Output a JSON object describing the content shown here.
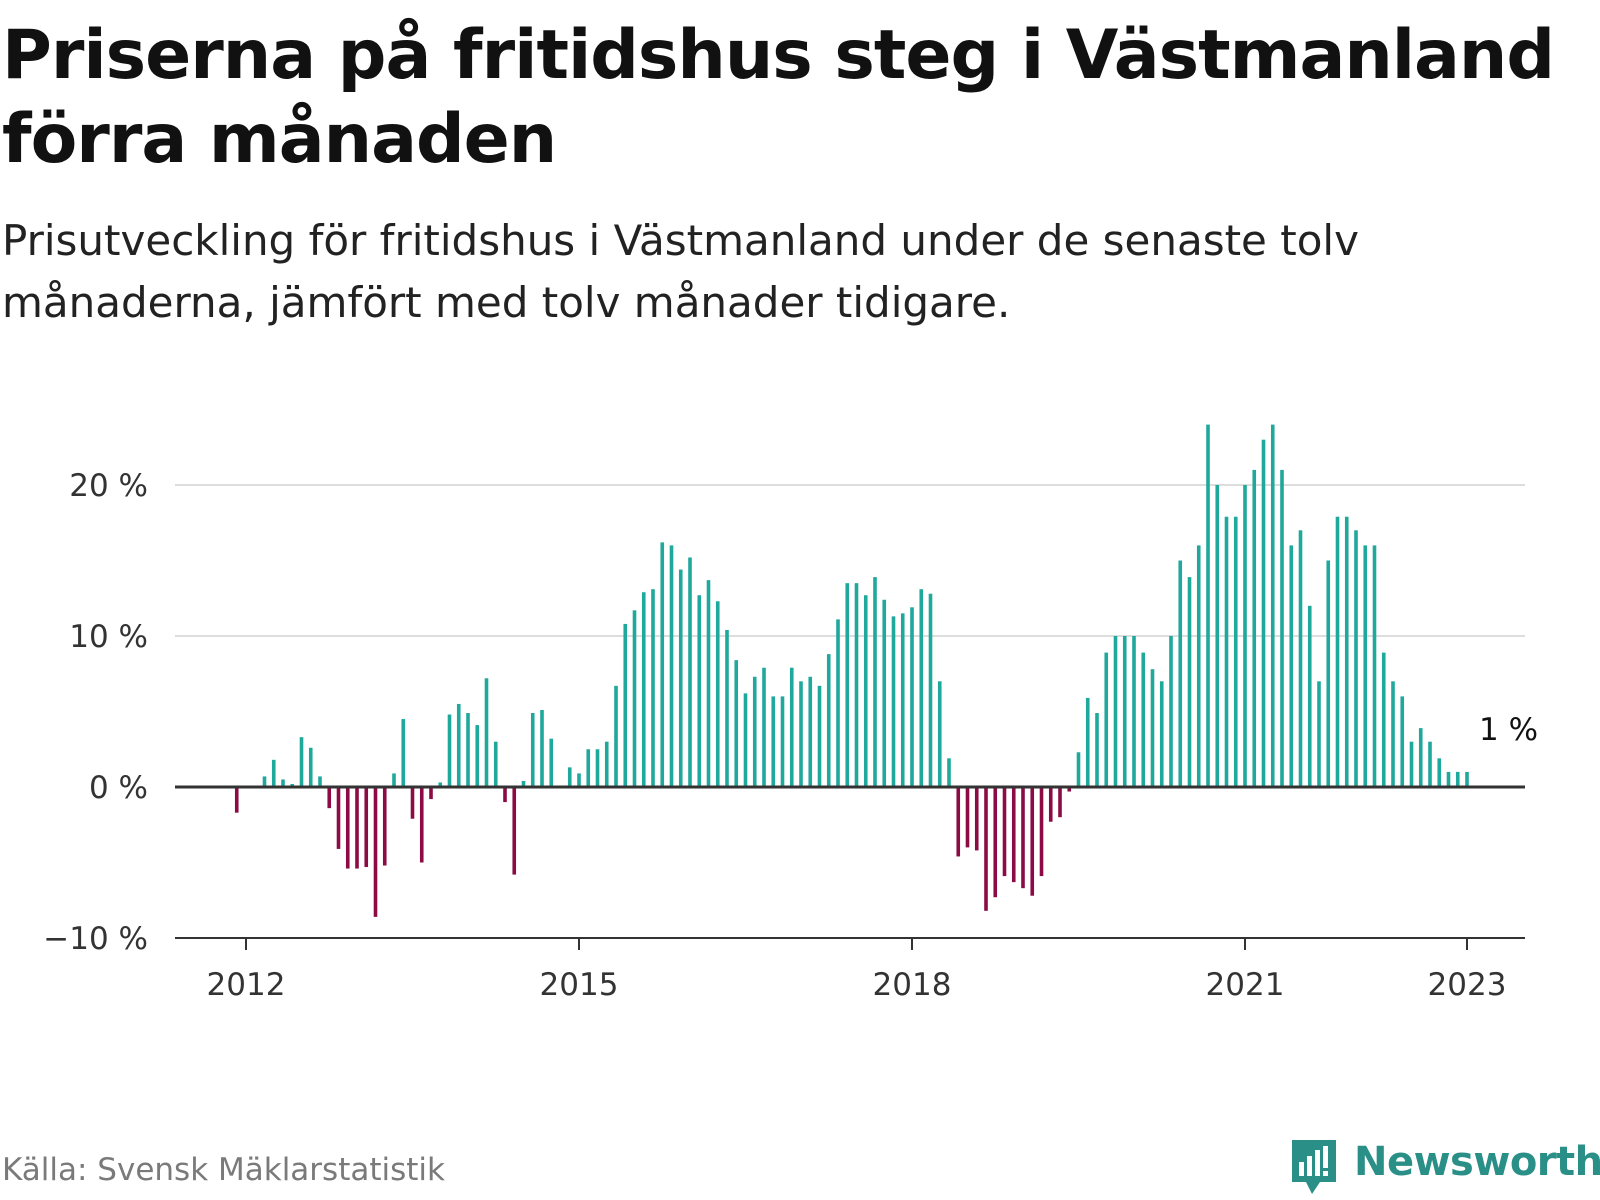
{
  "header": {
    "title": "Priserna på fritidshus steg i Västmanland förra månaden",
    "subtitle": "Prisutveckling för fritidshus i Västmanland under de senaste tolv månaderna, jämfört med tolv månader tidigare."
  },
  "footer": {
    "source": "Källa: Svensk Mäklarstatistik",
    "brand": "Newsworthy"
  },
  "colors": {
    "positive": "#1fa89c",
    "negative": "#8c0b45",
    "grid": "#dddddd",
    "axis": "#333333",
    "brand": "#2a8f86"
  },
  "chart_data": {
    "type": "bar",
    "x_unit": "month",
    "x_start": "2011-12",
    "values": [
      -1.7,
      0,
      0,
      0.7,
      1.8,
      0.5,
      0.2,
      3.3,
      2.6,
      0.7,
      -1.4,
      -4.1,
      -5.4,
      -5.4,
      -5.3,
      -8.6,
      -5.2,
      0.9,
      4.5,
      -2.1,
      -5.0,
      -0.8,
      0.3,
      4.8,
      5.5,
      4.9,
      4.1,
      7.2,
      3.0,
      -1.0,
      -5.8,
      0.4,
      4.9,
      5.1,
      3.2,
      0,
      1.3,
      0.9,
      2.5,
      2.5,
      3.0,
      6.7,
      10.8,
      11.7,
      12.9,
      13.1,
      16.2,
      16.0,
      14.4,
      15.2,
      12.7,
      13.7,
      12.3,
      10.4,
      8.4,
      6.2,
      7.3,
      7.9,
      6.0,
      6.0,
      7.9,
      7.0,
      7.3,
      6.7,
      8.8,
      11.1,
      13.5,
      13.5,
      12.7,
      13.9,
      12.4,
      11.3,
      11.5,
      11.9,
      13.1,
      12.8,
      7.0,
      1.9,
      -4.6,
      -4.0,
      -4.2,
      -8.2,
      -7.3,
      -5.9,
      -6.3,
      -6.7,
      -7.2,
      -5.9,
      -2.3,
      -2.0,
      -0.3,
      2.3,
      5.9,
      4.9,
      8.9,
      10.0,
      10.0,
      10.0,
      8.9,
      7.8,
      7.0,
      10.0,
      15.0,
      13.9,
      16.0,
      24.0,
      20.0,
      17.9,
      17.9,
      20.0,
      21.0,
      23.0,
      24.0,
      21.0,
      16.0,
      17.0,
      12.0,
      7.0,
      15.0,
      17.9,
      17.9,
      17.0,
      16.0,
      16.0,
      8.9,
      7.0,
      6.0,
      3.0,
      3.9,
      3.0,
      1.9,
      1.0,
      1.0,
      1.0
    ],
    "x_ticks": [
      {
        "label": "2012",
        "date": "2012-01"
      },
      {
        "label": "2015",
        "date": "2015-01"
      },
      {
        "label": "2018",
        "date": "2018-01"
      },
      {
        "label": "2021",
        "date": "2021-01"
      },
      {
        "label": "2023",
        "date": "2023-01"
      }
    ],
    "y_ticks": [
      {
        "label": "20 %",
        "value": 20
      },
      {
        "label": "10 %",
        "value": 10
      },
      {
        "label": "0 %",
        "value": 0
      },
      {
        "label": "−10 %",
        "value": -10
      }
    ],
    "ylim": [
      -10,
      24
    ],
    "grid": true,
    "legend": "none",
    "annotation": {
      "label": "1 %",
      "value": 1,
      "date": "2023-01"
    }
  }
}
